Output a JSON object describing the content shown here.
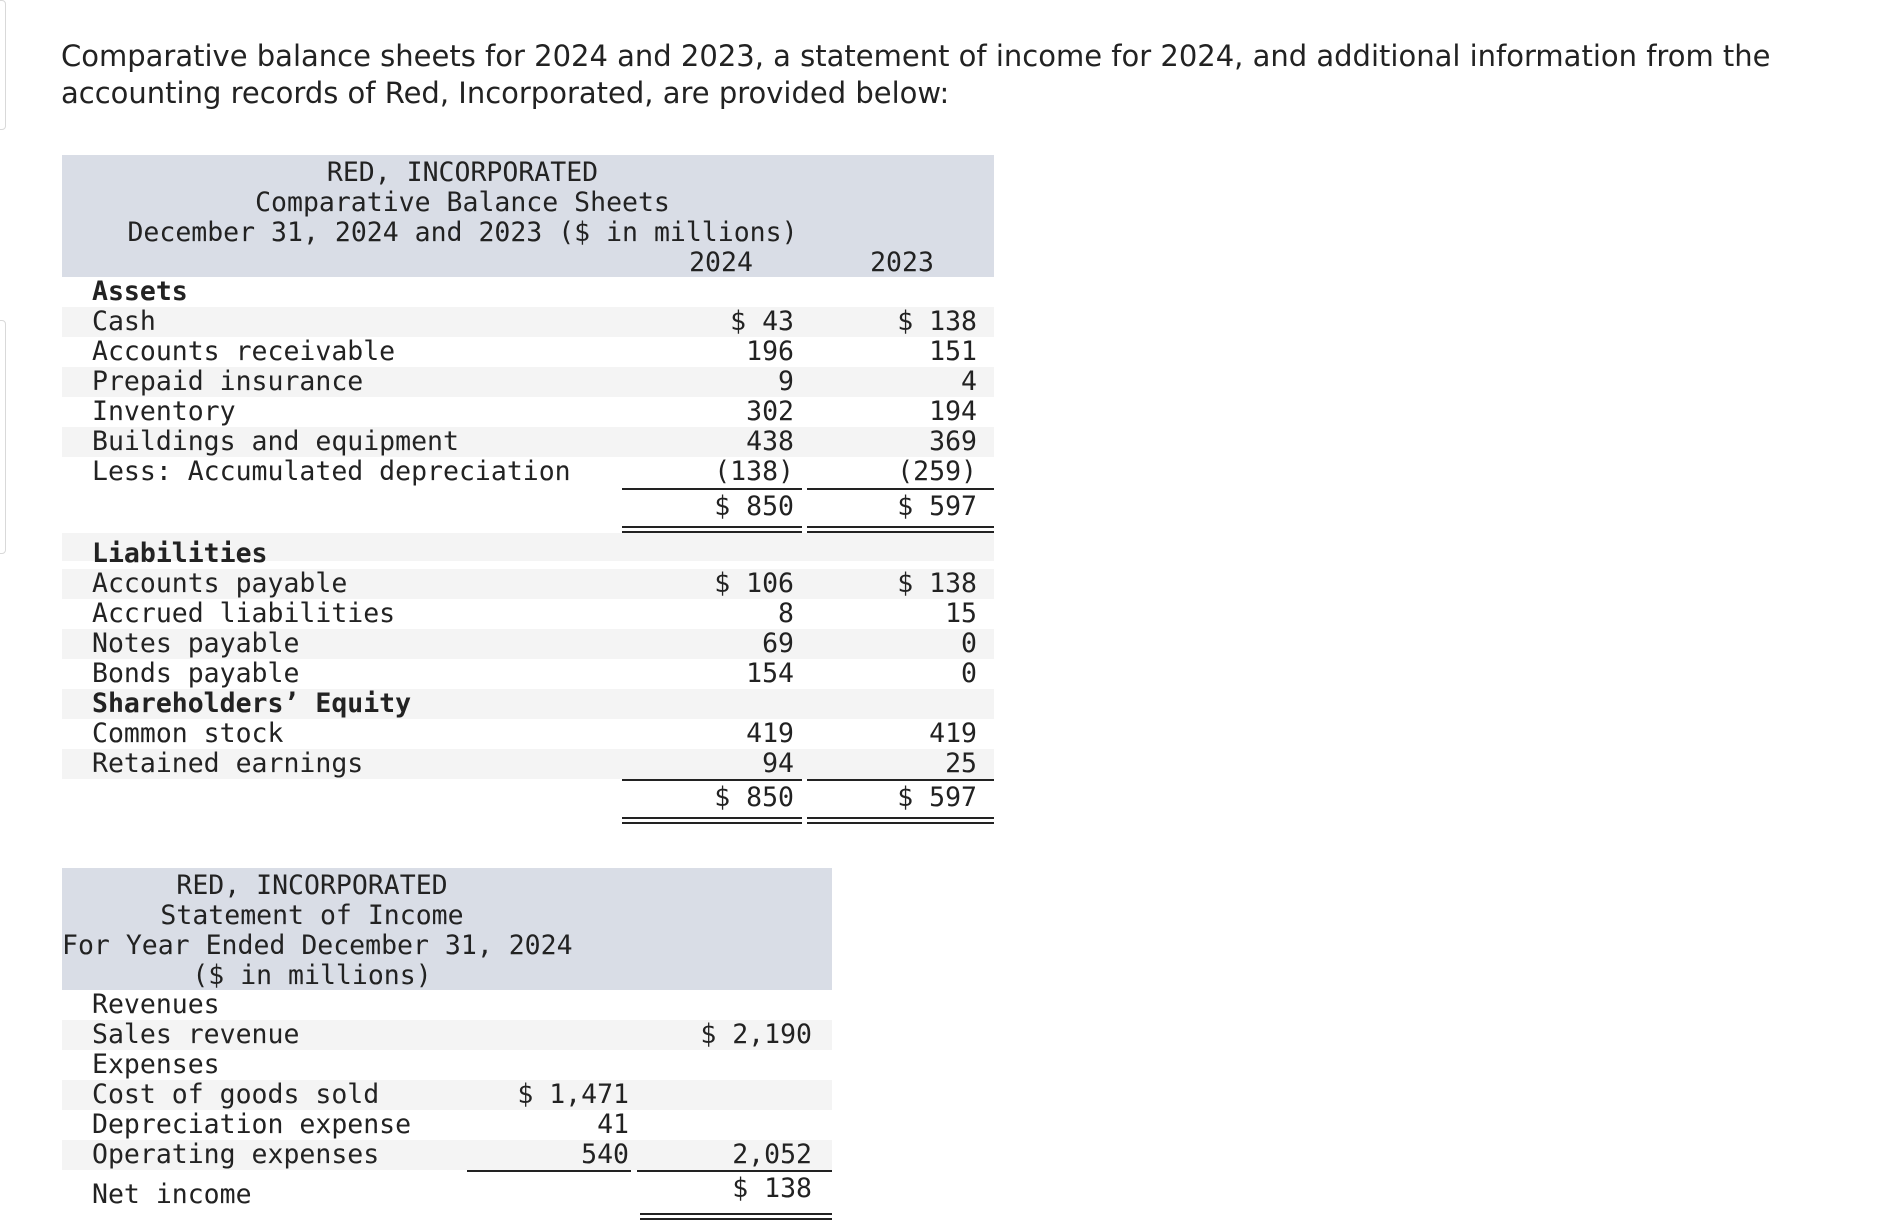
{
  "intro": "Comparative balance sheets for 2024 and 2023, a statement of income for 2024, and additional information from the accounting records of Red, Incorporated, are provided below:",
  "balance_sheet": {
    "company": "RED, INCORPORATED",
    "title": "Comparative Balance Sheets",
    "subtitle": "December 31, 2024 and 2023 ($ in millions)",
    "col_2024": "2024",
    "col_2023": "2023",
    "assets_heading": "Assets",
    "assets": [
      {
        "label": "Cash",
        "y2024": "$ 43",
        "y2023": "$ 138"
      },
      {
        "label": "Accounts receivable",
        "y2024": "196",
        "y2023": "151"
      },
      {
        "label": "Prepaid insurance",
        "y2024": "9",
        "y2023": "4"
      },
      {
        "label": "Inventory",
        "y2024": "302",
        "y2023": "194"
      },
      {
        "label": "Buildings and equipment",
        "y2024": "438",
        "y2023": "369"
      },
      {
        "label": "Less: Accumulated depreciation",
        "y2024": "(138)",
        "y2023": "(259)"
      }
    ],
    "assets_total": {
      "y2024": "$ 850",
      "y2023": "$ 597"
    },
    "liabilities_heading": "Liabilities",
    "liabilities": [
      {
        "label": "Accounts payable",
        "y2024": "$ 106",
        "y2023": "$ 138"
      },
      {
        "label": "Accrued liabilities",
        "y2024": "8",
        "y2023": "15"
      },
      {
        "label": "Notes payable",
        "y2024": "69",
        "y2023": "0"
      },
      {
        "label": "Bonds payable",
        "y2024": "154",
        "y2023": "0"
      }
    ],
    "equity_heading": "Shareholders’ Equity",
    "equity": [
      {
        "label": "Common stock",
        "y2024": "419",
        "y2023": "419"
      },
      {
        "label": "Retained earnings",
        "y2024": "94",
        "y2023": "25"
      }
    ],
    "liab_equity_total": {
      "y2024": "$ 850",
      "y2023": "$ 597"
    }
  },
  "income_statement": {
    "company": "RED, INCORPORATED",
    "title": "Statement of Income",
    "subtitle": "For Year Ended December 31, 2024",
    "units": "($ in millions)",
    "revenues_heading": "Revenues",
    "sales_label": "Sales revenue",
    "sales_value": "$ 2,190",
    "expenses_heading": "Expenses",
    "expenses": [
      {
        "label": "Cost of goods sold",
        "value": "$ 1,471"
      },
      {
        "label": "Depreciation expense",
        "value": "41"
      },
      {
        "label": "Operating expenses",
        "value": "540"
      }
    ],
    "expenses_total": "2,052",
    "net_income_label": "Net income",
    "net_income_value": "$ 138"
  }
}
